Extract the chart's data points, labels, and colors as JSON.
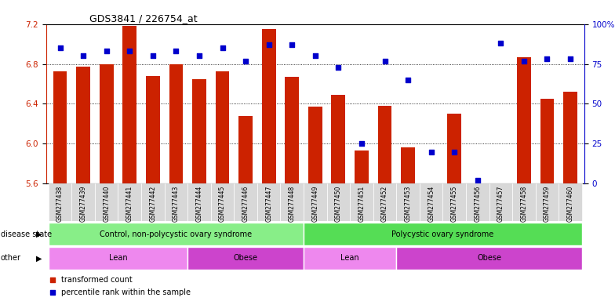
{
  "title": "GDS3841 / 226754_at",
  "samples": [
    "GSM277438",
    "GSM277439",
    "GSM277440",
    "GSM277441",
    "GSM277442",
    "GSM277443",
    "GSM277444",
    "GSM277445",
    "GSM277446",
    "GSM277447",
    "GSM277448",
    "GSM277449",
    "GSM277450",
    "GSM277451",
    "GSM277452",
    "GSM277453",
    "GSM277454",
    "GSM277455",
    "GSM277456",
    "GSM277457",
    "GSM277458",
    "GSM277459",
    "GSM277460"
  ],
  "bar_values": [
    6.73,
    6.77,
    6.8,
    7.18,
    6.68,
    6.8,
    6.65,
    6.73,
    6.28,
    7.15,
    6.67,
    6.37,
    6.49,
    5.93,
    6.38,
    5.96,
    5.51,
    6.3,
    5.57,
    5.6,
    6.87,
    6.45,
    6.52
  ],
  "percentile_values": [
    85,
    80,
    83,
    83,
    80,
    83,
    80,
    85,
    77,
    87,
    87,
    80,
    73,
    25,
    77,
    65,
    20,
    20,
    2,
    88,
    77,
    78,
    78
  ],
  "ylim_left": [
    5.6,
    7.2
  ],
  "ylim_right": [
    0,
    100
  ],
  "yticks_left": [
    5.6,
    6.0,
    6.4,
    6.8,
    7.2
  ],
  "yticks_right": [
    0,
    25,
    50,
    75,
    100
  ],
  "bar_color": "#cc2200",
  "dot_color": "#0000cc",
  "background_color": "#ffffff",
  "disease_state_groups": [
    {
      "label": "Control, non-polycystic ovary syndrome",
      "start": 0,
      "end": 10,
      "color": "#88ee88"
    },
    {
      "label": "Polycystic ovary syndrome",
      "start": 11,
      "end": 22,
      "color": "#55dd55"
    }
  ],
  "other_groups": [
    {
      "label": "Lean",
      "start": 0,
      "end": 5,
      "color": "#ee88ee"
    },
    {
      "label": "Obese",
      "start": 6,
      "end": 10,
      "color": "#cc44cc"
    },
    {
      "label": "Lean",
      "start": 11,
      "end": 14,
      "color": "#ee88ee"
    },
    {
      "label": "Obese",
      "start": 15,
      "end": 22,
      "color": "#cc44cc"
    }
  ],
  "disease_state_label": "disease state",
  "other_label": "other",
  "legend_items": [
    {
      "label": "transformed count",
      "color": "#cc2200"
    },
    {
      "label": "percentile rank within the sample",
      "color": "#0000cc"
    }
  ]
}
